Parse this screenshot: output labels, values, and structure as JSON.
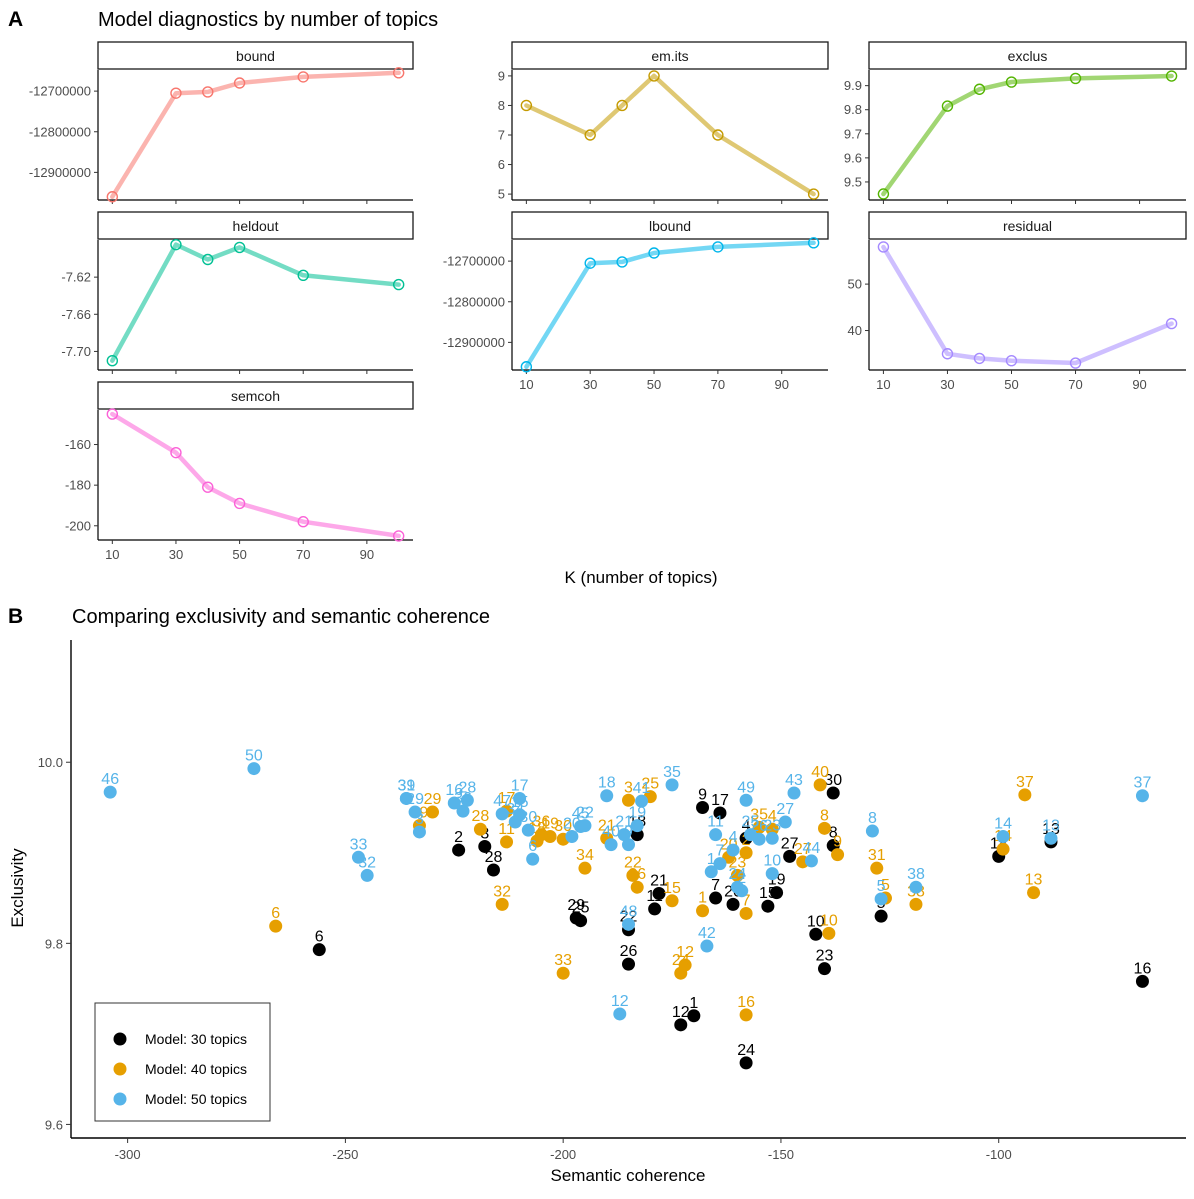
{
  "figure": {
    "tags": {
      "a": "A",
      "b": "B"
    },
    "title_a": "Model diagnostics by number of topics",
    "title_b": "Comparing exclusivity and semantic coherence",
    "xlabel_a": "K (number of topics)",
    "xlabel_b": "Semantic coherence",
    "ylabel_b": "Exclusivity"
  },
  "chart_data": [
    {
      "type": "line",
      "panel": "A",
      "x": [
        10,
        30,
        40,
        50,
        70,
        100
      ],
      "xticks": [
        10,
        30,
        50,
        70,
        90
      ],
      "facets": [
        {
          "name": "bound",
          "color": "#F8766D",
          "values": [
            -12960000,
            -12705000,
            -12702000,
            -12680000,
            -12665000,
            -12655000
          ],
          "ylim": [
            -12968000,
            -12648000
          ],
          "yticks": [
            -12900000,
            -12800000,
            -12700000
          ],
          "yticklabels": [
            "-12900000",
            "-12800000",
            "-12700000"
          ]
        },
        {
          "name": "em.its",
          "color": "#C49A00",
          "values": [
            8,
            7,
            8,
            9,
            7,
            5
          ],
          "ylim": [
            4.8,
            9.2
          ],
          "yticks": [
            5,
            6,
            7,
            8,
            9
          ],
          "yticklabels": [
            "5",
            "6",
            "7",
            "8",
            "9"
          ]
        },
        {
          "name": "exclus",
          "color": "#53B400",
          "values": [
            9.45,
            9.815,
            9.885,
            9.915,
            9.93,
            9.94
          ],
          "ylim": [
            9.425,
            9.965
          ],
          "yticks": [
            9.5,
            9.6,
            9.7,
            9.8,
            9.9
          ],
          "yticklabels": [
            "9.5",
            "9.6",
            "9.7",
            "9.8",
            "9.9"
          ]
        },
        {
          "name": "heldout",
          "color": "#00C094",
          "values": [
            -7.71,
            -7.585,
            -7.601,
            -7.588,
            -7.618,
            -7.628
          ],
          "ylim": [
            -7.72,
            -7.58
          ],
          "yticks": [
            -7.7,
            -7.66,
            -7.62
          ],
          "yticklabels": [
            "-7.70",
            "-7.66",
            "-7.62"
          ]
        },
        {
          "name": "lbound",
          "color": "#00B6EB",
          "values": [
            -12960000,
            -12705000,
            -12702000,
            -12680000,
            -12665000,
            -12655000
          ],
          "ylim": [
            -12968000,
            -12648000
          ],
          "yticks": [
            -12900000,
            -12800000,
            -12700000
          ],
          "yticklabels": [
            "-12900000",
            "-12800000",
            "-12700000"
          ]
        },
        {
          "name": "residual",
          "color": "#A58AFF",
          "values": [
            58,
            35,
            34,
            33.5,
            33,
            41.5
          ],
          "ylim": [
            31.5,
            59.5
          ],
          "yticks": [
            40,
            50
          ],
          "yticklabels": [
            "40",
            "50"
          ]
        },
        {
          "name": "semcoh",
          "color": "#FB61D7",
          "values": [
            -145,
            -164,
            -181,
            -189,
            -198,
            -205
          ],
          "ylim": [
            -207,
            -143
          ],
          "yticks": [
            -200,
            -180,
            -160
          ],
          "yticklabels": [
            "-200",
            "-180",
            "-160"
          ]
        }
      ]
    },
    {
      "type": "scatter",
      "panel": "B",
      "xlim": [
        -313,
        -57
      ],
      "ylim": [
        9.585,
        10.135
      ],
      "xticks": [
        -300,
        -250,
        -200,
        -150,
        -100
      ],
      "xticklabels": [
        "-300",
        "-250",
        "-200",
        "-150",
        "-100"
      ],
      "yticks": [
        9.6,
        9.8,
        10.0
      ],
      "yticklabels": [
        "9.6",
        "9.8",
        "10.0"
      ],
      "legend_position": "bottom-left",
      "series": [
        {
          "name": "Model: 30 topics",
          "color": "#000000",
          "points": [
            {
              "x": -170,
              "y": 9.72,
              "label": "1"
            },
            {
              "x": -224,
              "y": 9.903,
              "label": "2"
            },
            {
              "x": -218,
              "y": 9.907,
              "label": "3"
            },
            {
              "x": -158,
              "y": 9.916,
              "label": "4"
            },
            {
              "x": -127,
              "y": 9.83,
              "label": "5"
            },
            {
              "x": -256,
              "y": 9.793,
              "label": "6"
            },
            {
              "x": -165,
              "y": 9.85,
              "label": "7"
            },
            {
              "x": -138,
              "y": 9.908,
              "label": "8"
            },
            {
              "x": -168,
              "y": 9.95,
              "label": "9"
            },
            {
              "x": -142,
              "y": 9.81,
              "label": "10"
            },
            {
              "x": -179,
              "y": 9.838,
              "label": "11"
            },
            {
              "x": -173,
              "y": 9.71,
              "label": "12"
            },
            {
              "x": -88,
              "y": 9.912,
              "label": "13"
            },
            {
              "x": -100,
              "y": 9.896,
              "label": "14"
            },
            {
              "x": -153,
              "y": 9.841,
              "label": "15"
            },
            {
              "x": -67,
              "y": 9.758,
              "label": "16"
            },
            {
              "x": -164,
              "y": 9.944,
              "label": "17"
            },
            {
              "x": -183,
              "y": 9.92,
              "label": "18"
            },
            {
              "x": -151,
              "y": 9.856,
              "label": "19"
            },
            {
              "x": -161,
              "y": 9.843,
              "label": "20"
            },
            {
              "x": -178,
              "y": 9.855,
              "label": "21"
            },
            {
              "x": -185,
              "y": 9.815,
              "label": "22"
            },
            {
              "x": -140,
              "y": 9.772,
              "label": "23"
            },
            {
              "x": -158,
              "y": 9.668,
              "label": "24"
            },
            {
              "x": -196,
              "y": 9.825,
              "label": "25"
            },
            {
              "x": -185,
              "y": 9.777,
              "label": "26"
            },
            {
              "x": -148,
              "y": 9.896,
              "label": "27"
            },
            {
              "x": -216,
              "y": 9.881,
              "label": "28"
            },
            {
              "x": -197,
              "y": 9.828,
              "label": "29"
            },
            {
              "x": -138,
              "y": 9.966,
              "label": "30"
            }
          ]
        },
        {
          "name": "Model: 40 topics",
          "color": "#E69F00",
          "points": [
            {
              "x": -168,
              "y": 9.836,
              "label": "1"
            },
            {
              "x": -158,
              "y": 9.9,
              "label": "2"
            },
            {
              "x": -185,
              "y": 9.958,
              "label": "3"
            },
            {
              "x": -152,
              "y": 9.926,
              "label": "4"
            },
            {
              "x": -126,
              "y": 9.85,
              "label": "5"
            },
            {
              "x": -266,
              "y": 9.819,
              "label": "6"
            },
            {
              "x": -158,
              "y": 9.833,
              "label": "7"
            },
            {
              "x": -140,
              "y": 9.927,
              "label": "8"
            },
            {
              "x": -137,
              "y": 9.898,
              "label": "9"
            },
            {
              "x": -139,
              "y": 9.811,
              "label": "10"
            },
            {
              "x": -213,
              "y": 9.912,
              "label": "11"
            },
            {
              "x": -172,
              "y": 9.776,
              "label": "12"
            },
            {
              "x": -92,
              "y": 9.856,
              "label": "13"
            },
            {
              "x": -99,
              "y": 9.904,
              "label": "14"
            },
            {
              "x": -175,
              "y": 9.847,
              "label": "15"
            },
            {
              "x": -158,
              "y": 9.721,
              "label": "16"
            },
            {
              "x": -213,
              "y": 9.946,
              "label": "17"
            },
            {
              "x": -206,
              "y": 9.913,
              "label": "18"
            },
            {
              "x": -203,
              "y": 9.918,
              "label": "19"
            },
            {
              "x": -162,
              "y": 9.895,
              "label": "20"
            },
            {
              "x": -190,
              "y": 9.916,
              "label": "21"
            },
            {
              "x": -184,
              "y": 9.875,
              "label": "22"
            },
            {
              "x": -160,
              "y": 9.875,
              "label": "23"
            },
            {
              "x": -173,
              "y": 9.767,
              "label": "24"
            },
            {
              "x": -180,
              "y": 9.962,
              "label": "25"
            },
            {
              "x": -183,
              "y": 9.862,
              "label": "26"
            },
            {
              "x": -145,
              "y": 9.89,
              "label": "27"
            },
            {
              "x": -219,
              "y": 9.926,
              "label": "28"
            },
            {
              "x": -230,
              "y": 9.945,
              "label": "29"
            },
            {
              "x": -200,
              "y": 9.915,
              "label": "30"
            },
            {
              "x": -128,
              "y": 9.883,
              "label": "31"
            },
            {
              "x": -214,
              "y": 9.843,
              "label": "32"
            },
            {
              "x": -200,
              "y": 9.767,
              "label": "33"
            },
            {
              "x": -195,
              "y": 9.883,
              "label": "34"
            },
            {
              "x": -155,
              "y": 9.928,
              "label": "35"
            },
            {
              "x": -205,
              "y": 9.92,
              "label": "36"
            },
            {
              "x": -94,
              "y": 9.964,
              "label": "37"
            },
            {
              "x": -119,
              "y": 9.843,
              "label": "38"
            },
            {
              "x": -233,
              "y": 9.93,
              "label": "39"
            },
            {
              "x": -141,
              "y": 9.975,
              "label": "40"
            }
          ]
        },
        {
          "name": "Model: 50 topics",
          "color": "#56B4E9",
          "points": [
            {
              "x": -166,
              "y": 9.879,
              "label": "1"
            },
            {
              "x": -159,
              "y": 9.858,
              "label": "2"
            },
            {
              "x": -233,
              "y": 9.923,
              "label": "3"
            },
            {
              "x": -161,
              "y": 9.903,
              "label": "4"
            },
            {
              "x": -127,
              "y": 9.849,
              "label": "5"
            },
            {
              "x": -207,
              "y": 9.893,
              "label": "6"
            },
            {
              "x": -164,
              "y": 9.888,
              "label": "7"
            },
            {
              "x": -129,
              "y": 9.924,
              "label": "8"
            },
            {
              "x": -185,
              "y": 9.909,
              "label": "9"
            },
            {
              "x": -152,
              "y": 9.877,
              "label": "10"
            },
            {
              "x": -165,
              "y": 9.92,
              "label": "11"
            },
            {
              "x": -187,
              "y": 9.722,
              "label": "12"
            },
            {
              "x": -88,
              "y": 9.916,
              "label": "13"
            },
            {
              "x": -99,
              "y": 9.918,
              "label": "14"
            },
            {
              "x": -210,
              "y": 9.942,
              "label": "15"
            },
            {
              "x": -225,
              "y": 9.955,
              "label": "16"
            },
            {
              "x": -210,
              "y": 9.96,
              "label": "17"
            },
            {
              "x": -190,
              "y": 9.963,
              "label": "18"
            },
            {
              "x": -183,
              "y": 9.93,
              "label": "19"
            },
            {
              "x": -198,
              "y": 9.918,
              "label": "20"
            },
            {
              "x": -186,
              "y": 9.92,
              "label": "21"
            },
            {
              "x": -195,
              "y": 9.93,
              "label": "22"
            },
            {
              "x": -152,
              "y": 9.916,
              "label": "23"
            },
            {
              "x": -160,
              "y": 9.862,
              "label": "24"
            },
            {
              "x": -157,
              "y": 9.92,
              "label": "25"
            },
            {
              "x": -155,
              "y": 9.915,
              "label": "26"
            },
            {
              "x": -149,
              "y": 9.934,
              "label": "27"
            },
            {
              "x": -222,
              "y": 9.958,
              "label": "28"
            },
            {
              "x": -234,
              "y": 9.945,
              "label": "29"
            },
            {
              "x": -208,
              "y": 9.925,
              "label": "30"
            },
            {
              "x": -236,
              "y": 9.96,
              "label": "31"
            },
            {
              "x": -245,
              "y": 9.875,
              "label": "32"
            },
            {
              "x": -247,
              "y": 9.895,
              "label": "33"
            },
            {
              "x": -211,
              "y": 9.934,
              "label": "34"
            },
            {
              "x": -175,
              "y": 9.975,
              "label": "35"
            },
            {
              "x": -223,
              "y": 9.946,
              "label": "36"
            },
            {
              "x": -67,
              "y": 9.963,
              "label": "37"
            },
            {
              "x": -119,
              "y": 9.862,
              "label": "38"
            },
            {
              "x": -236,
              "y": 9.96,
              "label": "39"
            },
            {
              "x": -189,
              "y": 9.909,
              "label": "40"
            },
            {
              "x": -182,
              "y": 9.957,
              "label": "41"
            },
            {
              "x": -167,
              "y": 9.797,
              "label": "42"
            },
            {
              "x": -147,
              "y": 9.966,
              "label": "43"
            },
            {
              "x": -143,
              "y": 9.891,
              "label": "44"
            },
            {
              "x": -196,
              "y": 9.929,
              "label": "45"
            },
            {
              "x": -304,
              "y": 9.967,
              "label": "46"
            },
            {
              "x": -214,
              "y": 9.943,
              "label": "47"
            },
            {
              "x": -185,
              "y": 9.821,
              "label": "48"
            },
            {
              "x": -158,
              "y": 9.958,
              "label": "49"
            },
            {
              "x": -271,
              "y": 9.993,
              "label": "50"
            }
          ]
        }
      ]
    }
  ]
}
